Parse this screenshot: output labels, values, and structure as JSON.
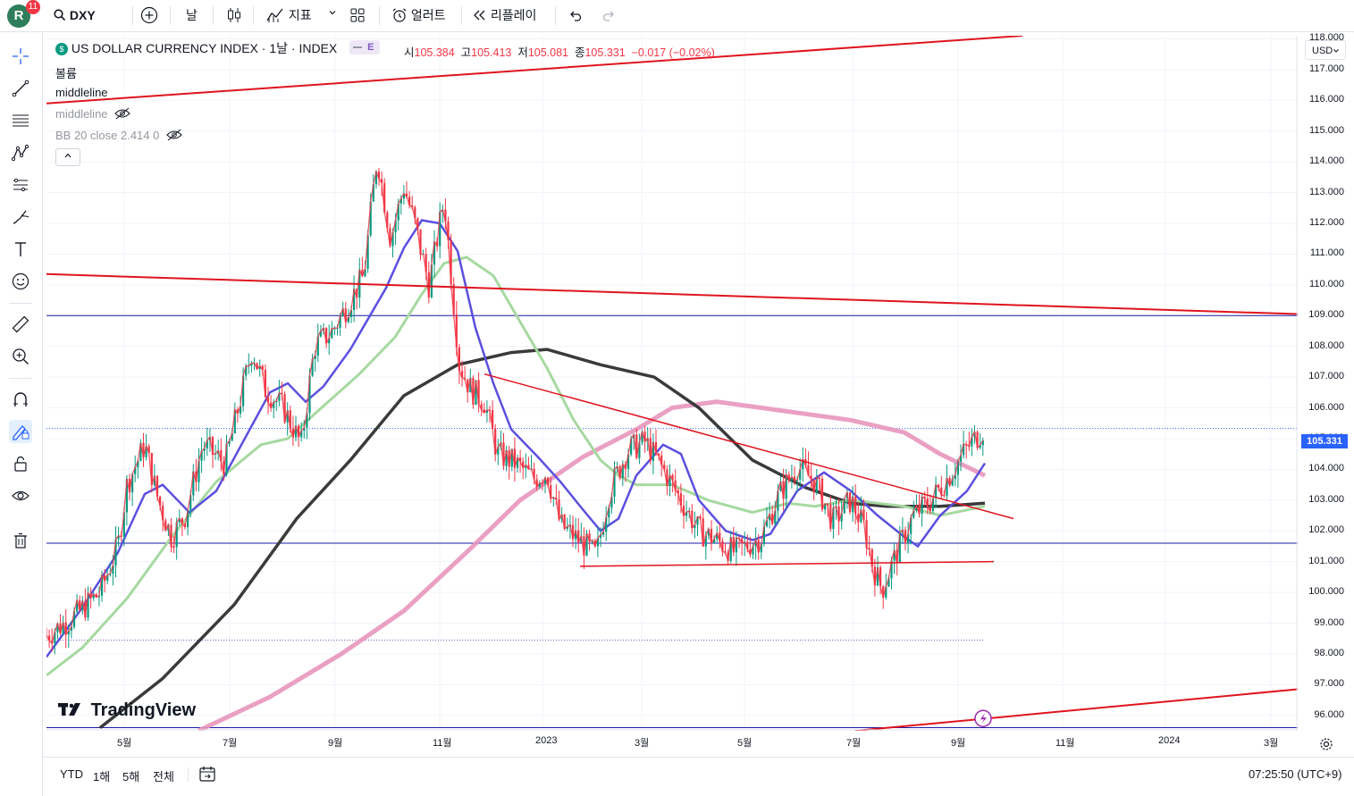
{
  "top_toolbar": {
    "avatar_letter": "R",
    "notification_count": "11",
    "symbol": "DXY",
    "interval": "날",
    "indicators_label": "지표",
    "alert_label": "얼러트",
    "replay_label": "리플레이"
  },
  "legend": {
    "title": "US DOLLAR CURRENCY INDEX · 1날 · INDEX",
    "badge": "E",
    "open_label": "시",
    "open": "105.384",
    "high_label": "고",
    "high": "105.413",
    "low_label": "저",
    "low": "105.081",
    "close_label": "종",
    "close": "105.331",
    "change": "−0.017 (−0.02%)",
    "indicator_1": "볼륨",
    "indicator_2": "middleline",
    "indicator_3": "middleline",
    "indicator_4": "BB 20 close 2.414 0"
  },
  "price_axis": {
    "currency": "USD",
    "last_price": "105.331",
    "ticks": [
      "118.000",
      "117.000",
      "116.000",
      "115.000",
      "114.000",
      "113.000",
      "112.000",
      "111.000",
      "110.000",
      "109.000",
      "108.000",
      "107.000",
      "106.000",
      "105.000",
      "104.000",
      "103.000",
      "102.000",
      "101.000",
      "100.000",
      "99.000",
      "98.000",
      "97.000",
      "96.000"
    ]
  },
  "time_axis": {
    "ticks": [
      "5월",
      "7월",
      "9월",
      "11월",
      "2023",
      "3월",
      "5월",
      "7월",
      "9월",
      "11월",
      "2024",
      "3월"
    ]
  },
  "bottom_bar": {
    "ranges": [
      "YTD",
      "1해",
      "5해",
      "전체"
    ],
    "clock": "07:25:50 (UTC+9)"
  },
  "branding": {
    "logo_text": "TradingView"
  },
  "colors": {
    "up": "#089981",
    "down": "#f23645",
    "accent": "#2962ff",
    "trendline": "#e0141e",
    "ma_fast": "#5b4fe0",
    "ma_mid": "#a6d9a0",
    "ma_slow": "#3a3a3a",
    "ma_long": "#e896bd",
    "hline": "#1a1aa8"
  },
  "chart_data": {
    "type": "candlestick",
    "y_range": [
      95.5,
      118.1
    ],
    "price_series_approx": [
      {
        "date": "2022-04",
        "value": 99.0
      },
      {
        "date": "2022-05",
        "value": 103.5
      },
      {
        "date": "2022-06",
        "value": 104.0
      },
      {
        "date": "2022-07",
        "value": 108.5
      },
      {
        "date": "2022-08",
        "value": 107.5
      },
      {
        "date": "2022-09",
        "value": 110.0
      },
      {
        "date": "2022-09-27",
        "value": 114.7
      },
      {
        "date": "2022-10",
        "value": 112.5
      },
      {
        "date": "2022-11",
        "value": 106.0
      },
      {
        "date": "2022-12",
        "value": 104.0
      },
      {
        "date": "2023-01",
        "value": 102.0
      },
      {
        "date": "2023-02",
        "value": 104.8
      },
      {
        "date": "2023-03",
        "value": 102.5
      },
      {
        "date": "2023-04",
        "value": 101.5
      },
      {
        "date": "2023-05",
        "value": 104.2
      },
      {
        "date": "2023-06",
        "value": 102.5
      },
      {
        "date": "2023-07",
        "value": 100.0
      },
      {
        "date": "2023-08",
        "value": 103.0
      },
      {
        "date": "2023-09",
        "value": 105.3
      }
    ]
  }
}
